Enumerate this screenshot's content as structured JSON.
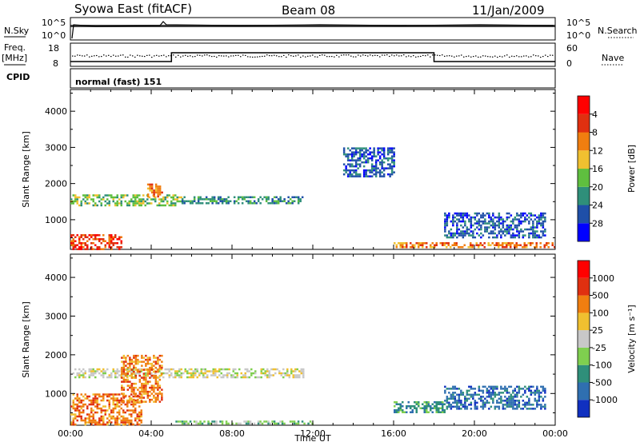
{
  "header": {
    "station": "Syowa East (fitACF)",
    "beam": "Beam 08",
    "date": "11/Jan/2009"
  },
  "nsky_panel": {
    "left_label": "N.Sky",
    "right_label": "N.Search",
    "left_ticks": [
      "10^5",
      "10^0"
    ],
    "right_ticks": [
      "10^5",
      "10^0"
    ]
  },
  "freq_panel": {
    "left_label_1": "Freq.",
    "left_label_2": "[MHz]",
    "right_label": "Nave",
    "left_ticks": [
      "18",
      "8"
    ],
    "right_ticks": [
      "60",
      "0"
    ],
    "freq_steps": [
      {
        "t0": 0,
        "t1": 5,
        "level": "low"
      },
      {
        "t0": 5,
        "t1": 18,
        "level": "high"
      },
      {
        "t0": 18,
        "t1": 24,
        "level": "low"
      }
    ]
  },
  "cpid": {
    "label": "CPID",
    "mode": "normal (fast) 151"
  },
  "chart_data": [
    {
      "type": "heatmap",
      "title": "",
      "ylabel": "Slant Range [km]",
      "xlabel": "",
      "ylim": [
        180,
        4600
      ],
      "yticks": [
        "1000",
        "2000",
        "3000",
        "4000"
      ],
      "colorbar_label": "Power [dB]",
      "colorbar_ticks": [
        "4",
        "8",
        "12",
        "16",
        "20",
        "24",
        "28"
      ],
      "colors": [
        "#0000ff",
        "#1f4fa8",
        "#2f8f7a",
        "#5fbf3f",
        "#f0c030",
        "#f07e10",
        "#e03010",
        "#ff0000"
      ],
      "regions": [
        {
          "t0": 0.0,
          "t1": 5.5,
          "r0": 1400,
          "r1": 1700,
          "c": 3
        },
        {
          "t0": 5.5,
          "t1": 11.5,
          "r0": 1450,
          "r1": 1650,
          "c": 2
        },
        {
          "t0": 0.0,
          "t1": 2.5,
          "r0": 200,
          "r1": 600,
          "c": 6
        },
        {
          "t0": 3.8,
          "t1": 4.5,
          "r0": 1600,
          "r1": 2000,
          "c": 5
        },
        {
          "t0": 16.0,
          "t1": 24.0,
          "r0": 220,
          "r1": 380,
          "c": 5
        },
        {
          "t0": 18.5,
          "t1": 23.5,
          "r0": 500,
          "r1": 1200,
          "c": 1
        },
        {
          "t0": 13.5,
          "t1": 16.0,
          "r0": 2200,
          "r1": 3000,
          "c": 1
        }
      ]
    },
    {
      "type": "heatmap",
      "title": "",
      "ylabel": "Slant Range [km]",
      "xlabel": "Time UT",
      "ylim": [
        180,
        4600
      ],
      "yticks": [
        "1000",
        "2000",
        "3000",
        "4000"
      ],
      "xticks": [
        "00:00",
        "04:00",
        "08:00",
        "12:00",
        "16:00",
        "20:00",
        "00:00"
      ],
      "colorbar_label": "Velocity [m s⁻¹]",
      "colorbar_ticks": [
        "1000",
        "500",
        "100",
        "25",
        "-25",
        "-100",
        "-500",
        "-1000"
      ],
      "colors": [
        "#1030c0",
        "#2f6fb0",
        "#2f8f7a",
        "#7fcf4f",
        "#c8c8c8",
        "#f0c030",
        "#f07e10",
        "#e03010",
        "#ff0000"
      ],
      "regions": [
        {
          "t0": 0.0,
          "t1": 11.5,
          "r0": 1400,
          "r1": 1650,
          "c": 4
        },
        {
          "t0": 0.0,
          "t1": 3.5,
          "r0": 200,
          "r1": 1000,
          "c": 6
        },
        {
          "t0": 2.5,
          "t1": 4.5,
          "r0": 800,
          "r1": 2000,
          "c": 6
        },
        {
          "t0": 16.0,
          "t1": 18.5,
          "r0": 500,
          "r1": 800,
          "c": 2
        },
        {
          "t0": 18.5,
          "t1": 23.5,
          "r0": 600,
          "r1": 1200,
          "c": 1
        },
        {
          "t0": 5.0,
          "t1": 12.0,
          "r0": 200,
          "r1": 300,
          "c": 3
        }
      ]
    }
  ]
}
